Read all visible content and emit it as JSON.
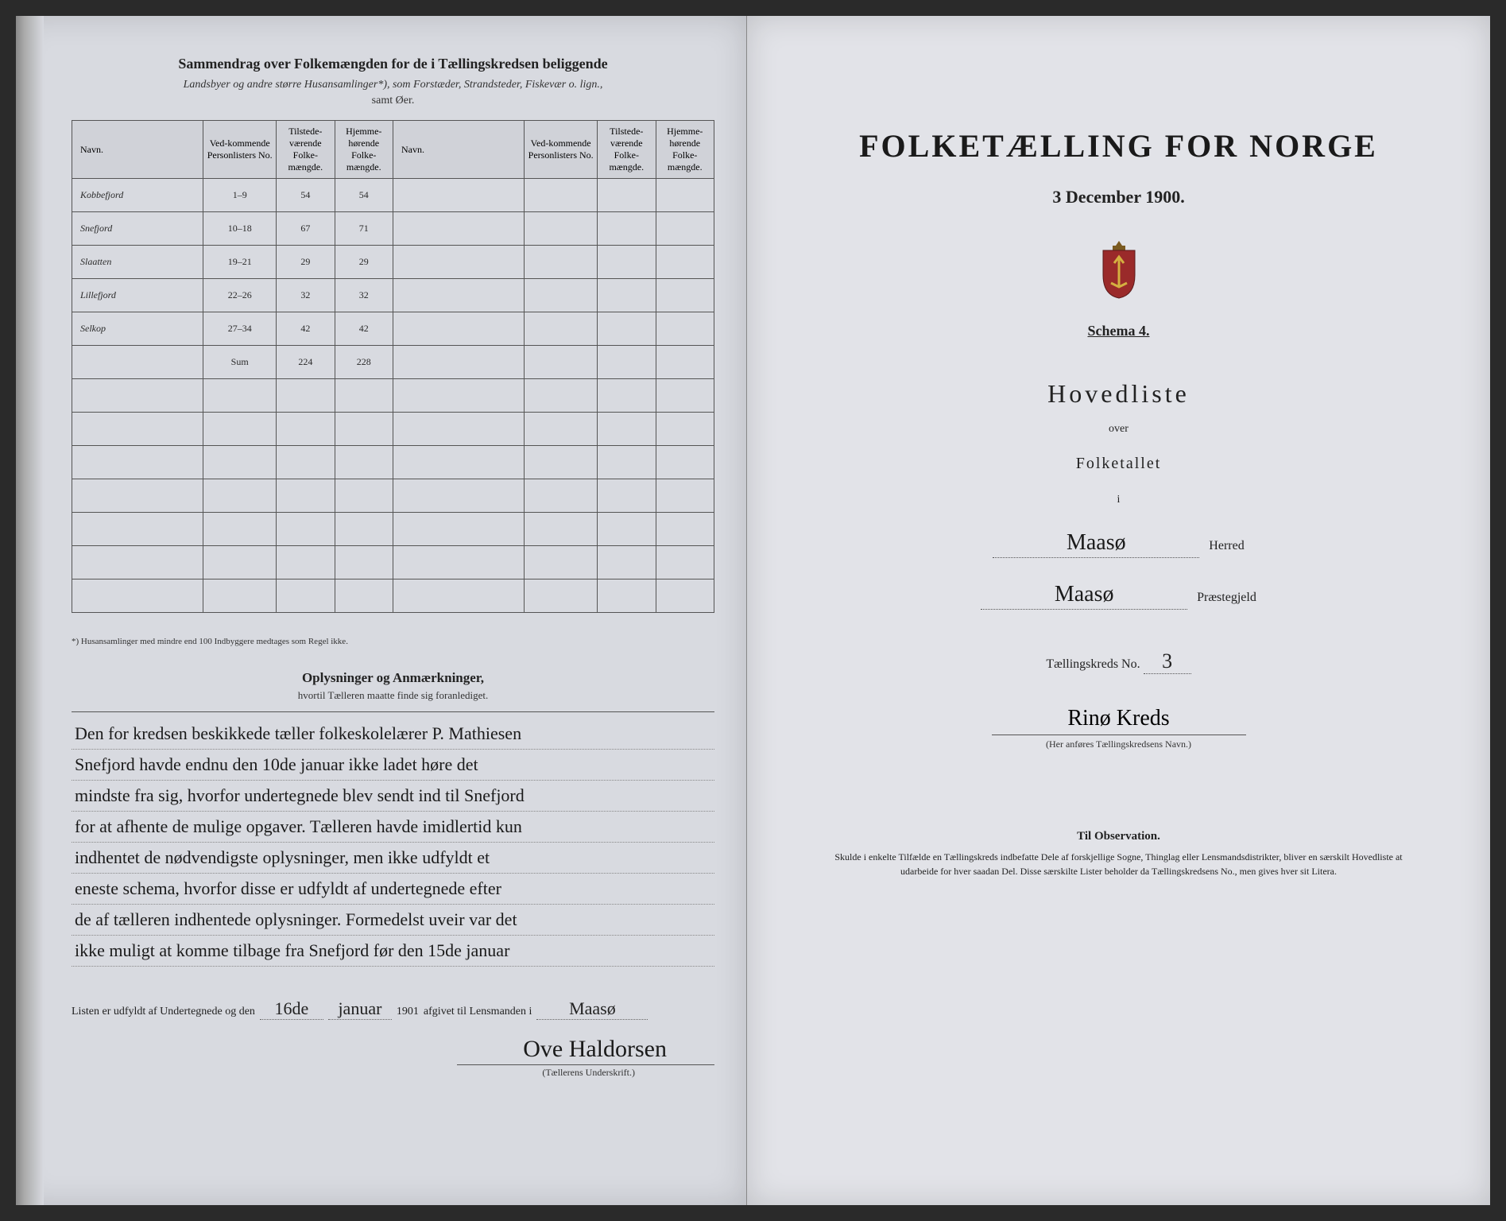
{
  "left": {
    "title": "Sammendrag over Folkemængden for de i Tællingskredsen beliggende",
    "subtitle_italic": "Landsbyer og andre større Husansamlinger*), som Forstæder, Strandsteder, Fiskevær o. lign.,",
    "subtitle2": "samt Øer.",
    "columns": [
      "Navn.",
      "Ved-kommende Personlisters No.",
      "Tilstede-værende Folke-mængde.",
      "Hjemme-hørende Folke-mængde.",
      "Navn.",
      "Ved-kommende Personlisters No.",
      "Tilstede-værende Folke-mængde.",
      "Hjemme-hørende Folke-mængde."
    ],
    "rows": [
      {
        "navn": "Kobbefjord",
        "no": "1–9",
        "tilst": "54",
        "hjem": "54"
      },
      {
        "navn": "Snefjord",
        "no": "10–18",
        "tilst": "67",
        "hjem": "71"
      },
      {
        "navn": "Slaatten",
        "no": "19–21",
        "tilst": "29",
        "hjem": "29"
      },
      {
        "navn": "Lillefjord",
        "no": "22–26",
        "tilst": "32",
        "hjem": "32"
      },
      {
        "navn": "Selkop",
        "no": "27–34",
        "tilst": "42",
        "hjem": "42"
      }
    ],
    "sum_row": {
      "label": "Sum",
      "tilst": "224",
      "hjem": "228"
    },
    "blank_rows": 7,
    "footnote": "*) Husansamlinger med mindre end 100 Indbyggere medtages som Regel ikke.",
    "remarks_head": "Oplysninger og Anmærkninger,",
    "remarks_sub": "hvortil Tælleren maatte finde sig foranlediget.",
    "remarks_lines": [
      "Den for kredsen beskikkede tæller folkeskolelærer P. Mathiesen",
      "Snefjord havde endnu den 10de januar ikke ladet høre det",
      "mindste fra sig, hvorfor undertegnede blev sendt ind til Snefjord",
      "for at afhente de mulige opgaver. Tælleren havde imidlertid kun",
      "indhentet de nødvendigste oplysninger, men ikke udfyldt et",
      "eneste schema, hvorfor disse er udfyldt af undertegnede efter",
      "de af tælleren indhentede oplysninger. Formedelst uveir var det",
      "ikke muligt at komme tilbage fra Snefjord før den 15de januar"
    ],
    "sig_prefix": "Listen er udfyldt af Undertegnede og den",
    "sig_date_day": "16de",
    "sig_date_month": "januar",
    "sig_year": "1901",
    "sig_mid": "afgivet til Lensmanden i",
    "sig_place": "Maasø",
    "signature": "Ove Haldorsen",
    "sig_caption": "(Tællerens Underskrift.)"
  },
  "right": {
    "title": "FOLKETÆLLING FOR NORGE",
    "date": "3 December 1900.",
    "schema": "Schema 4.",
    "hovedliste": "Hovedliste",
    "over": "over",
    "folketallet": "Folketallet",
    "i": "i",
    "herred_value": "Maasø",
    "herred_label": "Herred",
    "prestegjeld_value": "Maasø",
    "prestegjeld_label": "Præstegjeld",
    "kreds_label": "Tællingskreds No.",
    "kreds_no": "3",
    "kreds_name": "Rinø Kreds",
    "kreds_caption": "(Her anføres Tællingskredsens Navn.)",
    "obs_head": "Til Observation.",
    "obs_text": "Skulde i enkelte Tilfælde en Tællingskreds indbefatte Dele af forskjellige Sogne, Thinglag eller Lensmandsdistrikter, bliver en særskilt Hovedliste at udarbeide for hver saadan Del. Disse særskilte Lister beholder da Tællingskredsens No., men gives hver sit Litera."
  },
  "style": {
    "paper_left": "#d8dae0",
    "paper_right": "#e2e3e8",
    "ink": "#1a1a1a",
    "rule": "#555555",
    "handwriting_font": "Brush Script MT"
  }
}
